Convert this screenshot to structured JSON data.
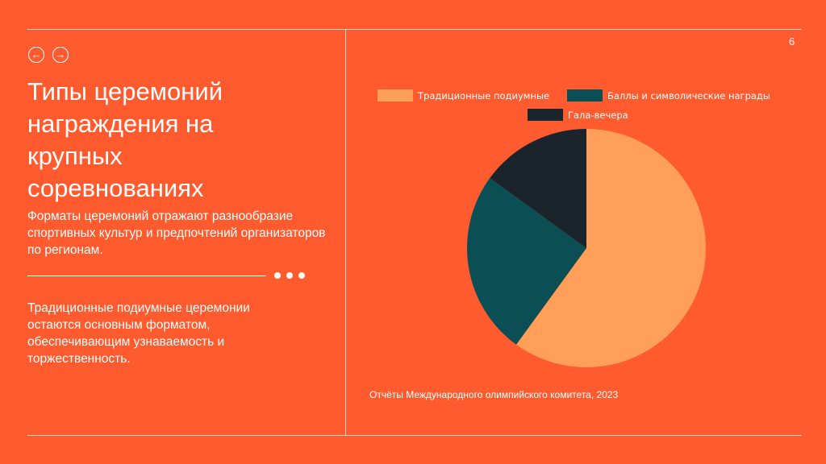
{
  "page_number": "6",
  "nav": {
    "back": "←",
    "forward": "→"
  },
  "title": "Типы церемоний награждения на крупных соревнованиях",
  "subtitle": "Форматы церемоний отражают разнообразие спортивных культур и предпочтений организаторов по регионам.",
  "body": "Традиционные подиумные церемонии остаются основным форматом, обеспечивающим узнаваемость и торжественность.",
  "source": "Отчёты Международного олимпийского комитета, 2023",
  "chart_data": {
    "type": "pie",
    "legend_position": "top",
    "categories": [
      "Традиционные подиумные",
      "Баллы и символические награды",
      "Гала-вечера"
    ],
    "values": [
      60,
      25,
      15
    ],
    "colors": [
      "#FF9F5A",
      "#0B4F55",
      "#1B232B"
    ]
  }
}
